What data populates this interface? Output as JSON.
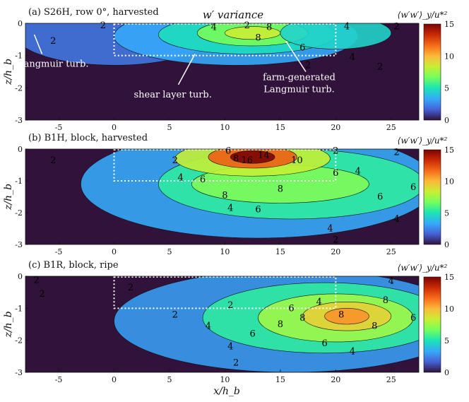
{
  "figure": {
    "title": "w′ variance",
    "xlabel": "x/h_b",
    "ylabel": "z/h_b",
    "colorbar_label": "⟨w′w′⟩_y/u*²"
  },
  "colors": {
    "deep": "#30123b",
    "jet_stops": [
      "#30123b",
      "#4662d7",
      "#36aaf9",
      "#1ae4b6",
      "#72fe5e",
      "#c8ef34",
      "#faba39",
      "#f66b19",
      "#ca2a04",
      "#7a0403"
    ]
  },
  "chart_data": [
    {
      "type": "heatmap",
      "panel": "a",
      "title": "(a) S26H, row 0°, harvested",
      "xlabel": "",
      "ylabel": "z/h_b",
      "xlim": [
        -8,
        27.5
      ],
      "ylim": [
        -3,
        0
      ],
      "xticks": [
        -5,
        0,
        5,
        10,
        15,
        20,
        25
      ],
      "yticks": [
        0,
        -1,
        -2,
        -3
      ],
      "colorbar": {
        "min": 0,
        "max": 15,
        "ticks": [
          0,
          5,
          10,
          15
        ]
      },
      "farm_box": {
        "x": [
          0,
          20
        ],
        "z": [
          -1,
          0
        ]
      },
      "peak": {
        "x": 12.5,
        "z": -0.3,
        "value": 9
      },
      "contour_levels": [
        2,
        4,
        6,
        8
      ],
      "annotations": [
        "Langmuir turb.",
        "shear layer turb.",
        "farm-generated Langmuir turb."
      ],
      "contour_labels": [
        {
          "text": "2",
          "x": -1,
          "z": -0.07
        },
        {
          "text": "2",
          "x": -5.5,
          "z": -0.55
        },
        {
          "text": "2",
          "x": 12,
          "z": -0.07
        },
        {
          "text": "4",
          "x": 9,
          "z": -0.12
        },
        {
          "text": "8",
          "x": 14,
          "z": -0.12
        },
        {
          "text": "8",
          "x": 13,
          "z": -0.45
        },
        {
          "text": "6",
          "x": 17,
          "z": -0.75
        },
        {
          "text": "4",
          "x": 21,
          "z": -0.1
        },
        {
          "text": "2",
          "x": 25.5,
          "z": -0.1
        },
        {
          "text": "4",
          "x": 21.5,
          "z": -1.05
        },
        {
          "text": "2",
          "x": 17.5,
          "z": -1.3
        },
        {
          "text": "2",
          "x": 24,
          "z": -1.35
        }
      ]
    },
    {
      "type": "heatmap",
      "panel": "b",
      "title": "(b) B1H, block, harvested",
      "xlabel": "",
      "ylabel": "z/h_b",
      "xlim": [
        -8,
        27.5
      ],
      "ylim": [
        -3,
        0
      ],
      "xticks": [
        -5,
        0,
        5,
        10,
        15,
        20,
        25
      ],
      "yticks": [
        0,
        -1,
        -2,
        -3
      ],
      "colorbar": {
        "min": 0,
        "max": 15,
        "ticks": [
          0,
          5,
          10,
          15
        ]
      },
      "farm_box": {
        "x": [
          0,
          20
        ],
        "z": [
          -1,
          0
        ]
      },
      "peak": {
        "x": 12.5,
        "z": -0.25,
        "value": 16
      },
      "contour_levels": [
        2,
        4,
        6,
        8,
        10,
        12,
        14,
        16
      ],
      "contour_labels": [
        {
          "text": "2",
          "x": -5.5,
          "z": -0.35
        },
        {
          "text": "2",
          "x": 5.5,
          "z": -0.35
        },
        {
          "text": "2",
          "x": 20,
          "z": -0.05
        },
        {
          "text": "2",
          "x": 25.5,
          "z": -0.1
        },
        {
          "text": "6",
          "x": 10.3,
          "z": -0.05
        },
        {
          "text": "8",
          "x": 11,
          "z": -0.3
        },
        {
          "text": "16",
          "x": 12,
          "z": -0.35
        },
        {
          "text": "14",
          "x": 13.5,
          "z": -0.2
        },
        {
          "text": "10",
          "x": 16.5,
          "z": -0.35
        },
        {
          "text": "6",
          "x": 20,
          "z": -0.75
        },
        {
          "text": "4",
          "x": 6,
          "z": -0.9
        },
        {
          "text": "6",
          "x": 8,
          "z": -0.95
        },
        {
          "text": "8",
          "x": 10,
          "z": -1.45
        },
        {
          "text": "6",
          "x": 13,
          "z": -1.9
        },
        {
          "text": "4",
          "x": 10.5,
          "z": -1.85
        },
        {
          "text": "8",
          "x": 15,
          "z": -1.25
        },
        {
          "text": "6",
          "x": 24,
          "z": -1.5
        },
        {
          "text": "6",
          "x": 27,
          "z": -1.2
        },
        {
          "text": "4",
          "x": 25.5,
          "z": -2.2
        },
        {
          "text": "4",
          "x": 19.5,
          "z": -2.5
        },
        {
          "text": "2",
          "x": 20,
          "z": -2.85
        },
        {
          "text": "4",
          "x": 22,
          "z": -0.7
        }
      ]
    },
    {
      "type": "heatmap",
      "panel": "c",
      "title": "(c) B1R, block, ripe",
      "xlabel": "x/h_b",
      "ylabel": "z/h_b",
      "xlim": [
        -8,
        27.5
      ],
      "ylim": [
        -3,
        0
      ],
      "xticks": [
        -5,
        0,
        5,
        10,
        15,
        20,
        25
      ],
      "yticks": [
        0,
        -1,
        -2,
        -3
      ],
      "colorbar": {
        "min": 0,
        "max": 15,
        "ticks": [
          0,
          5,
          10,
          15
        ]
      },
      "farm_box": {
        "x": [
          0,
          20
        ],
        "z": [
          -1,
          0
        ]
      },
      "peak": {
        "x": 21,
        "z": -1.25,
        "value": 11
      },
      "contour_levels": [
        2,
        4,
        6,
        8
      ],
      "contour_labels": [
        {
          "text": "2",
          "x": -7,
          "z": -0.12
        },
        {
          "text": "2",
          "x": -6.5,
          "z": -0.55
        },
        {
          "text": "2",
          "x": 1.5,
          "z": -0.35
        },
        {
          "text": "2",
          "x": 10.5,
          "z": -0.9
        },
        {
          "text": "2",
          "x": 5.5,
          "z": -1.2
        },
        {
          "text": "4",
          "x": 8.5,
          "z": -1.55
        },
        {
          "text": "8",
          "x": 15,
          "z": -1.5
        },
        {
          "text": "8",
          "x": 17,
          "z": -1.3
        },
        {
          "text": "6",
          "x": 16,
          "z": -1.0
        },
        {
          "text": "4",
          "x": 18.5,
          "z": -0.8
        },
        {
          "text": "8",
          "x": 20.5,
          "z": -1.2
        },
        {
          "text": "8",
          "x": 23.5,
          "z": -1.55
        },
        {
          "text": "6",
          "x": 12.5,
          "z": -1.8
        },
        {
          "text": "6",
          "x": 19,
          "z": -2.1
        },
        {
          "text": "4",
          "x": 10.5,
          "z": -2.2
        },
        {
          "text": "4",
          "x": 21.5,
          "z": -2.35
        },
        {
          "text": "8",
          "x": 24.5,
          "z": -0.75
        },
        {
          "text": "4",
          "x": 25,
          "z": -0.15
        },
        {
          "text": "6",
          "x": 27,
          "z": -1.3
        },
        {
          "text": "2",
          "x": 11,
          "z": -2.7
        }
      ]
    }
  ]
}
